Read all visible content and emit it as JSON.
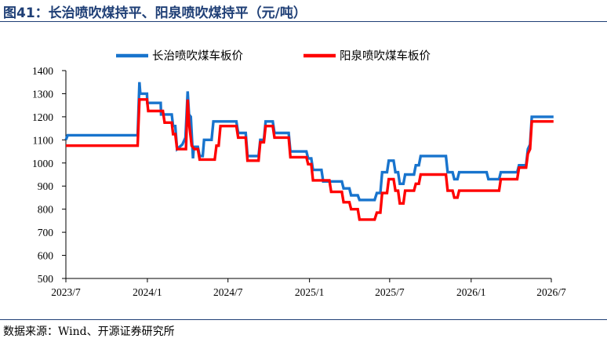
{
  "figure": {
    "title": "图41：长治喷吹煤持平、阳泉喷吹煤持平（元/吨）",
    "source": "数据来源：Wind、开源证券研究所"
  },
  "colors": {
    "blue": "#1874cd",
    "red": "#ff0000",
    "accent": "#1f3f76"
  },
  "chart_data": {
    "type": "line",
    "title": "",
    "xlabel": "",
    "ylabel": "",
    "x_ticks": [
      "2023/7",
      "2024/1",
      "2024/7",
      "2025/1",
      "2025/7",
      "2026/1",
      "2026/7"
    ],
    "y_ticks": [
      500,
      600,
      700,
      800,
      900,
      1000,
      1100,
      1200,
      1300,
      1400
    ],
    "ylim": [
      500,
      1400
    ],
    "xlim": [
      "2023/7",
      "2026/7"
    ],
    "grid": false,
    "legend_position": "top",
    "series": [
      {
        "name": "长治喷吹煤车板价",
        "color": "#1874cd",
        "points": [
          [
            "2023-07-01",
            1100
          ],
          [
            "2023-07-05",
            1120
          ],
          [
            "2023-12-10",
            1120
          ],
          [
            "2023-12-14",
            1350
          ],
          [
            "2023-12-16",
            1300
          ],
          [
            "2023-12-31",
            1300
          ],
          [
            "2024-01-01",
            1260
          ],
          [
            "2024-01-31",
            1260
          ],
          [
            "2024-02-01",
            1210
          ],
          [
            "2024-02-25",
            1210
          ],
          [
            "2024-02-28",
            1160
          ],
          [
            "2024-03-04",
            1160
          ],
          [
            "2024-03-08",
            1060
          ],
          [
            "2024-03-20",
            1080
          ],
          [
            "2024-03-27",
            1110
          ],
          [
            "2024-04-01",
            1310
          ],
          [
            "2024-04-04",
            1210
          ],
          [
            "2024-04-08",
            1200
          ],
          [
            "2024-04-13",
            1020
          ],
          [
            "2024-04-15",
            1070
          ],
          [
            "2024-04-24",
            1070
          ],
          [
            "2024-04-28",
            1030
          ],
          [
            "2024-05-05",
            1030
          ],
          [
            "2024-05-08",
            1100
          ],
          [
            "2024-05-25",
            1100
          ],
          [
            "2024-05-29",
            1180
          ],
          [
            "2024-07-20",
            1180
          ],
          [
            "2024-07-24",
            1130
          ],
          [
            "2024-08-10",
            1130
          ],
          [
            "2024-08-14",
            1030
          ],
          [
            "2024-09-08",
            1030
          ],
          [
            "2024-09-12",
            1100
          ],
          [
            "2024-09-20",
            1100
          ],
          [
            "2024-09-24",
            1180
          ],
          [
            "2024-10-10",
            1180
          ],
          [
            "2024-10-14",
            1130
          ],
          [
            "2024-11-15",
            1130
          ],
          [
            "2024-11-19",
            1050
          ],
          [
            "2024-12-25",
            1050
          ],
          [
            "2024-12-29",
            1020
          ],
          [
            "2025-01-05",
            1020
          ],
          [
            "2025-01-09",
            970
          ],
          [
            "2025-01-28",
            970
          ],
          [
            "2025-02-01",
            920
          ],
          [
            "2025-03-15",
            920
          ],
          [
            "2025-03-19",
            890
          ],
          [
            "2025-04-01",
            890
          ],
          [
            "2025-04-05",
            860
          ],
          [
            "2025-04-20",
            860
          ],
          [
            "2025-04-24",
            840
          ],
          [
            "2025-05-28",
            840
          ],
          [
            "2025-06-02",
            870
          ],
          [
            "2025-06-10",
            870
          ],
          [
            "2025-06-14",
            960
          ],
          [
            "2025-06-25",
            960
          ],
          [
            "2025-06-29",
            1010
          ],
          [
            "2025-07-10",
            1010
          ],
          [
            "2025-07-14",
            960
          ],
          [
            "2025-07-20",
            960
          ],
          [
            "2025-07-24",
            910
          ],
          [
            "2025-08-01",
            910
          ],
          [
            "2025-08-05",
            950
          ],
          [
            "2025-08-25",
            950
          ],
          [
            "2025-08-29",
            990
          ],
          [
            "2025-09-05",
            990
          ],
          [
            "2025-09-09",
            1030
          ],
          [
            "2025-11-05",
            1030
          ],
          [
            "2025-11-09",
            960
          ],
          [
            "2025-11-20",
            960
          ],
          [
            "2025-11-24",
            930
          ],
          [
            "2025-12-01",
            930
          ],
          [
            "2025-12-05",
            960
          ],
          [
            "2026-02-05",
            960
          ],
          [
            "2026-02-09",
            930
          ],
          [
            "2026-03-05",
            930
          ],
          [
            "2026-03-09",
            960
          ],
          [
            "2026-04-15",
            960
          ],
          [
            "2026-04-19",
            990
          ],
          [
            "2026-05-05",
            990
          ],
          [
            "2026-05-09",
            1060
          ],
          [
            "2026-05-14",
            1080
          ],
          [
            "2026-05-18",
            1200
          ],
          [
            "2026-07-06",
            1200
          ]
        ]
      },
      {
        "name": "阳泉喷吹煤车板价",
        "color": "#ff0000",
        "points": [
          [
            "2023-07-01",
            1075
          ],
          [
            "2023-12-10",
            1075
          ],
          [
            "2023-12-14",
            1275
          ],
          [
            "2023-12-31",
            1275
          ],
          [
            "2024-01-03",
            1225
          ],
          [
            "2024-02-05",
            1225
          ],
          [
            "2024-02-09",
            1175
          ],
          [
            "2024-02-25",
            1175
          ],
          [
            "2024-02-28",
            1125
          ],
          [
            "2024-03-04",
            1125
          ],
          [
            "2024-03-08",
            1060
          ],
          [
            "2024-03-28",
            1060
          ],
          [
            "2024-04-01",
            1275
          ],
          [
            "2024-04-04",
            1175
          ],
          [
            "2024-04-10",
            1075
          ],
          [
            "2024-04-16",
            1060
          ],
          [
            "2024-04-24",
            1060
          ],
          [
            "2024-04-28",
            1015
          ],
          [
            "2024-06-01",
            1015
          ],
          [
            "2024-06-05",
            1075
          ],
          [
            "2024-06-10",
            1075
          ],
          [
            "2024-06-14",
            1160
          ],
          [
            "2024-07-20",
            1160
          ],
          [
            "2024-07-24",
            1110
          ],
          [
            "2024-08-10",
            1110
          ],
          [
            "2024-08-14",
            1010
          ],
          [
            "2024-09-08",
            1010
          ],
          [
            "2024-09-12",
            1090
          ],
          [
            "2024-09-20",
            1090
          ],
          [
            "2024-09-24",
            1160
          ],
          [
            "2024-10-10",
            1160
          ],
          [
            "2024-10-14",
            1110
          ],
          [
            "2024-11-15",
            1110
          ],
          [
            "2024-11-19",
            1025
          ],
          [
            "2024-12-25",
            1025
          ],
          [
            "2024-12-29",
            995
          ],
          [
            "2025-01-05",
            995
          ],
          [
            "2025-01-09",
            925
          ],
          [
            "2025-02-15",
            925
          ],
          [
            "2025-02-19",
            875
          ],
          [
            "2025-03-15",
            875
          ],
          [
            "2025-03-19",
            830
          ],
          [
            "2025-04-01",
            830
          ],
          [
            "2025-04-05",
            800
          ],
          [
            "2025-04-20",
            800
          ],
          [
            "2025-04-24",
            755
          ],
          [
            "2025-05-28",
            755
          ],
          [
            "2025-06-02",
            785
          ],
          [
            "2025-06-10",
            785
          ],
          [
            "2025-06-14",
            870
          ],
          [
            "2025-06-25",
            870
          ],
          [
            "2025-06-29",
            930
          ],
          [
            "2025-07-10",
            930
          ],
          [
            "2025-07-14",
            880
          ],
          [
            "2025-07-20",
            880
          ],
          [
            "2025-07-24",
            825
          ],
          [
            "2025-08-01",
            825
          ],
          [
            "2025-08-05",
            880
          ],
          [
            "2025-08-25",
            880
          ],
          [
            "2025-08-29",
            910
          ],
          [
            "2025-09-05",
            910
          ],
          [
            "2025-09-09",
            950
          ],
          [
            "2025-11-05",
            950
          ],
          [
            "2025-11-09",
            880
          ],
          [
            "2025-11-20",
            880
          ],
          [
            "2025-11-24",
            850
          ],
          [
            "2025-12-01",
            850
          ],
          [
            "2025-12-05",
            880
          ],
          [
            "2026-03-05",
            880
          ],
          [
            "2026-03-09",
            930
          ],
          [
            "2026-04-15",
            930
          ],
          [
            "2026-04-19",
            980
          ],
          [
            "2026-05-05",
            980
          ],
          [
            "2026-05-09",
            1040
          ],
          [
            "2026-05-14",
            1060
          ],
          [
            "2026-05-18",
            1180
          ],
          [
            "2026-07-06",
            1180
          ]
        ]
      }
    ]
  }
}
